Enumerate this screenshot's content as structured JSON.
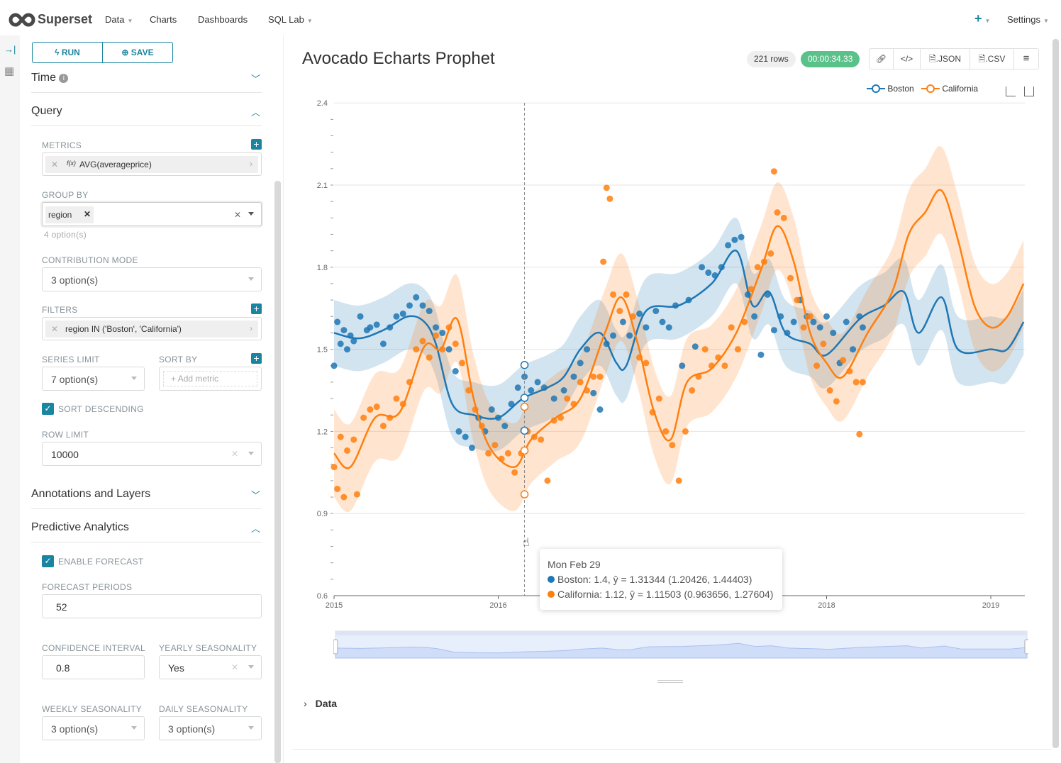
{
  "nav": {
    "brand": "Superset",
    "items": [
      {
        "label": "Data",
        "caret": true
      },
      {
        "label": "Charts"
      },
      {
        "label": "Dashboards"
      },
      {
        "label": "SQL Lab",
        "caret": true
      }
    ],
    "plus": "+",
    "settings": "Settings"
  },
  "toolbar": {
    "run": "RUN",
    "save": "SAVE"
  },
  "sections": {
    "time": "Time",
    "query": "Query",
    "annotations": "Annotations and Layers",
    "predictive": "Predictive Analytics"
  },
  "controls": {
    "metrics_label": "METRICS",
    "metric": "AVG(averageprice)",
    "fx": "f(x)",
    "groupby_label": "GROUP BY",
    "groupby_chip": "region",
    "groupby_hint": "4 option(s)",
    "contribution_label": "CONTRIBUTION MODE",
    "contribution_value": "3 option(s)",
    "filters_label": "FILTERS",
    "filter": "region IN ('Boston', 'California')",
    "series_limit_label": "SERIES LIMIT",
    "series_limit_value": "7 option(s)",
    "sort_by_label": "SORT BY",
    "sort_by_placeholder": "Add metric",
    "sort_desc_label": "SORT DESCENDING",
    "row_limit_label": "ROW LIMIT",
    "row_limit_value": "10000",
    "enable_forecast_label": "ENABLE FORECAST",
    "forecast_periods_label": "FORECAST PERIODS",
    "forecast_periods_value": "52",
    "confidence_label": "CONFIDENCE INTERVAL",
    "confidence_value": "0.8",
    "yearly_label": "YEARLY SEASONALITY",
    "yearly_value": "Yes",
    "weekly_label": "WEEKLY SEASONALITY",
    "weekly_value": "3 option(s)",
    "daily_label": "DAILY SEASONALITY",
    "daily_value": "3 option(s)"
  },
  "chart": {
    "title": "Avocado Echarts Prophet",
    "rows": "221 rows",
    "timer": "00:00:34.33",
    "json": ".JSON",
    "csv": ".CSV",
    "data_section": "Data"
  },
  "tooltip": {
    "date": "Mon Feb 29",
    "lines": [
      "Boston: 1.4, ŷ = 1.31344 (1.20426, 1.44403)",
      "California: 1.12, ŷ = 1.11503 (0.963656, 1.27604)"
    ]
  },
  "colors": {
    "accent": "#1a85a0",
    "boston": "#1f77b4",
    "california": "#ff7f0e",
    "timer": "#5ac189"
  },
  "chart_data": {
    "type": "line",
    "title": "Avocado Echarts Prophet",
    "ylim": [
      0.6,
      2.4
    ],
    "yticks": [
      "0.6",
      "0.9",
      "1.2",
      "1.5",
      "1.8",
      "2.1",
      "2.4"
    ],
    "xlim": [
      2015,
      2019.2
    ],
    "xticks": [
      {
        "v": 2015,
        "label": "2015"
      },
      {
        "v": 2016,
        "label": "2016"
      },
      {
        "v": 2018,
        "label": "2018"
      },
      {
        "v": 2019,
        "label": "2019"
      }
    ],
    "legend": [
      "Boston",
      "California"
    ],
    "legend_position": "top-right",
    "hover_x": 2016.16,
    "series": [
      {
        "name": "Boston",
        "color": "#1f77b4",
        "band": 0.12,
        "yhat": [
          [
            2015,
            1.56
          ],
          [
            2015.15,
            1.54
          ],
          [
            2015.3,
            1.57
          ],
          [
            2015.45,
            1.62
          ],
          [
            2015.55,
            1.6
          ],
          [
            2015.62,
            1.52
          ],
          [
            2015.72,
            1.3
          ],
          [
            2015.85,
            1.26
          ],
          [
            2016,
            1.25
          ],
          [
            2016.15,
            1.32
          ],
          [
            2016.3,
            1.36
          ],
          [
            2016.4,
            1.4
          ],
          [
            2016.5,
            1.5
          ],
          [
            2016.62,
            1.56
          ],
          [
            2016.72,
            1.45
          ],
          [
            2016.78,
            1.44
          ],
          [
            2016.9,
            1.64
          ],
          [
            2017.1,
            1.66
          ],
          [
            2017.3,
            1.74
          ],
          [
            2017.45,
            1.86
          ],
          [
            2017.55,
            1.66
          ],
          [
            2017.65,
            1.71
          ],
          [
            2017.75,
            1.56
          ],
          [
            2017.9,
            1.52
          ],
          [
            2018,
            1.48
          ],
          [
            2018.2,
            1.61
          ],
          [
            2018.35,
            1.66
          ],
          [
            2018.47,
            1.71
          ],
          [
            2018.56,
            1.56
          ],
          [
            2018.7,
            1.69
          ],
          [
            2018.8,
            1.5
          ],
          [
            2019,
            1.5
          ],
          [
            2019.1,
            1.5
          ],
          [
            2019.2,
            1.6
          ]
        ],
        "actual": [
          [
            2015,
            1.44
          ],
          [
            2015.02,
            1.6
          ],
          [
            2015.04,
            1.52
          ],
          [
            2015.06,
            1.57
          ],
          [
            2015.08,
            1.5
          ],
          [
            2015.1,
            1.55
          ],
          [
            2015.12,
            1.53
          ],
          [
            2015.16,
            1.62
          ],
          [
            2015.2,
            1.57
          ],
          [
            2015.22,
            1.58
          ],
          [
            2015.26,
            1.59
          ],
          [
            2015.3,
            1.52
          ],
          [
            2015.34,
            1.58
          ],
          [
            2015.38,
            1.62
          ],
          [
            2015.42,
            1.63
          ],
          [
            2015.46,
            1.66
          ],
          [
            2015.5,
            1.69
          ],
          [
            2015.54,
            1.66
          ],
          [
            2015.58,
            1.64
          ],
          [
            2015.62,
            1.58
          ],
          [
            2015.66,
            1.56
          ],
          [
            2015.7,
            1.5
          ],
          [
            2015.74,
            1.42
          ],
          [
            2015.76,
            1.2
          ],
          [
            2015.8,
            1.18
          ],
          [
            2015.84,
            1.14
          ],
          [
            2015.88,
            1.25
          ],
          [
            2015.92,
            1.2
          ],
          [
            2015.96,
            1.28
          ],
          [
            2016,
            1.25
          ],
          [
            2016.04,
            1.22
          ],
          [
            2016.08,
            1.3
          ],
          [
            2016.12,
            1.36
          ],
          [
            2016.16,
            1.4
          ],
          [
            2016.2,
            1.35
          ],
          [
            2016.24,
            1.38
          ],
          [
            2016.28,
            1.36
          ],
          [
            2016.34,
            1.32
          ],
          [
            2016.4,
            1.35
          ],
          [
            2016.46,
            1.4
          ],
          [
            2016.5,
            1.45
          ],
          [
            2016.54,
            1.5
          ],
          [
            2016.58,
            1.34
          ],
          [
            2016.62,
            1.28
          ],
          [
            2016.66,
            1.52
          ],
          [
            2016.7,
            1.55
          ],
          [
            2016.76,
            1.6
          ],
          [
            2016.8,
            1.55
          ],
          [
            2016.86,
            1.63
          ],
          [
            2016.9,
            1.58
          ],
          [
            2016.96,
            1.64
          ],
          [
            2017,
            1.6
          ],
          [
            2017.04,
            1.58
          ],
          [
            2017.08,
            1.66
          ],
          [
            2017.12,
            1.44
          ],
          [
            2017.16,
            1.68
          ],
          [
            2017.2,
            1.51
          ],
          [
            2017.24,
            1.8
          ],
          [
            2017.28,
            1.78
          ],
          [
            2017.32,
            1.77
          ],
          [
            2017.36,
            1.8
          ],
          [
            2017.4,
            1.88
          ],
          [
            2017.44,
            1.9
          ],
          [
            2017.48,
            1.91
          ],
          [
            2017.52,
            1.7
          ],
          [
            2017.56,
            1.62
          ],
          [
            2017.6,
            1.48
          ],
          [
            2017.64,
            1.7
          ],
          [
            2017.68,
            1.57
          ],
          [
            2017.72,
            1.62
          ],
          [
            2017.76,
            1.56
          ],
          [
            2017.8,
            1.6
          ],
          [
            2017.84,
            1.68
          ],
          [
            2017.88,
            1.62
          ],
          [
            2017.92,
            1.6
          ],
          [
            2017.96,
            1.58
          ],
          [
            2018,
            1.62
          ],
          [
            2018.04,
            1.56
          ],
          [
            2018.08,
            1.45
          ],
          [
            2018.12,
            1.6
          ],
          [
            2018.16,
            1.5
          ],
          [
            2018.2,
            1.62
          ],
          [
            2018.22,
            1.58
          ]
        ]
      },
      {
        "name": "California",
        "color": "#ff7f0e",
        "band": 0.16,
        "yhat": [
          [
            2015,
            1.12
          ],
          [
            2015.1,
            1.07
          ],
          [
            2015.25,
            1.25
          ],
          [
            2015.4,
            1.27
          ],
          [
            2015.55,
            1.51
          ],
          [
            2015.65,
            1.5
          ],
          [
            2015.75,
            1.61
          ],
          [
            2015.85,
            1.32
          ],
          [
            2015.95,
            1.14
          ],
          [
            2016.1,
            1.07
          ],
          [
            2016.2,
            1.17
          ],
          [
            2016.35,
            1.25
          ],
          [
            2016.5,
            1.32
          ],
          [
            2016.65,
            1.56
          ],
          [
            2016.75,
            1.69
          ],
          [
            2016.85,
            1.52
          ],
          [
            2016.95,
            1.27
          ],
          [
            2017.05,
            1.17
          ],
          [
            2017.15,
            1.38
          ],
          [
            2017.3,
            1.43
          ],
          [
            2017.45,
            1.56
          ],
          [
            2017.6,
            1.79
          ],
          [
            2017.7,
            1.95
          ],
          [
            2017.8,
            1.82
          ],
          [
            2017.9,
            1.56
          ],
          [
            2018,
            1.45
          ],
          [
            2018.1,
            1.4
          ],
          [
            2018.25,
            1.56
          ],
          [
            2018.4,
            1.71
          ],
          [
            2018.5,
            1.92
          ],
          [
            2018.6,
            2.0
          ],
          [
            2018.7,
            2.08
          ],
          [
            2018.8,
            1.9
          ],
          [
            2018.9,
            1.66
          ],
          [
            2019,
            1.58
          ],
          [
            2019.1,
            1.62
          ],
          [
            2019.2,
            1.74
          ]
        ],
        "actual": [
          [
            2015,
            1.07
          ],
          [
            2015.02,
            0.99
          ],
          [
            2015.04,
            1.18
          ],
          [
            2015.06,
            0.96
          ],
          [
            2015.08,
            1.13
          ],
          [
            2015.12,
            1.17
          ],
          [
            2015.14,
            0.97
          ],
          [
            2015.18,
            1.25
          ],
          [
            2015.22,
            1.28
          ],
          [
            2015.26,
            1.29
          ],
          [
            2015.3,
            1.22
          ],
          [
            2015.34,
            1.25
          ],
          [
            2015.38,
            1.32
          ],
          [
            2015.42,
            1.3
          ],
          [
            2015.46,
            1.38
          ],
          [
            2015.5,
            1.5
          ],
          [
            2015.54,
            1.53
          ],
          [
            2015.58,
            1.47
          ],
          [
            2015.62,
            1.55
          ],
          [
            2015.66,
            1.5
          ],
          [
            2015.7,
            1.58
          ],
          [
            2015.74,
            1.52
          ],
          [
            2015.78,
            1.45
          ],
          [
            2015.82,
            1.35
          ],
          [
            2015.86,
            1.28
          ],
          [
            2015.9,
            1.22
          ],
          [
            2015.94,
            1.12
          ],
          [
            2015.98,
            1.15
          ],
          [
            2016.02,
            1.1
          ],
          [
            2016.06,
            1.12
          ],
          [
            2016.1,
            1.05
          ],
          [
            2016.14,
            1.12
          ],
          [
            2016.18,
            1.2
          ],
          [
            2016.22,
            1.18
          ],
          [
            2016.26,
            1.17
          ],
          [
            2016.3,
            1.02
          ],
          [
            2016.34,
            1.24
          ],
          [
            2016.38,
            1.25
          ],
          [
            2016.42,
            1.32
          ],
          [
            2016.46,
            1.3
          ],
          [
            2016.5,
            1.38
          ],
          [
            2016.54,
            1.35
          ],
          [
            2016.58,
            1.4
          ],
          [
            2016.62,
            1.4
          ],
          [
            2016.64,
            1.82
          ],
          [
            2016.66,
            2.09
          ],
          [
            2016.68,
            2.05
          ],
          [
            2016.7,
            1.7
          ],
          [
            2016.74,
            1.64
          ],
          [
            2016.78,
            1.7
          ],
          [
            2016.82,
            1.62
          ],
          [
            2016.86,
            1.47
          ],
          [
            2016.9,
            1.45
          ],
          [
            2016.94,
            1.27
          ],
          [
            2016.98,
            1.32
          ],
          [
            2017.02,
            1.2
          ],
          [
            2017.06,
            1.15
          ],
          [
            2017.1,
            1.02
          ],
          [
            2017.14,
            1.2
          ],
          [
            2017.18,
            1.35
          ],
          [
            2017.22,
            1.4
          ],
          [
            2017.26,
            1.5
          ],
          [
            2017.3,
            1.44
          ],
          [
            2017.34,
            1.47
          ],
          [
            2017.38,
            1.44
          ],
          [
            2017.42,
            1.58
          ],
          [
            2017.46,
            1.5
          ],
          [
            2017.5,
            1.6
          ],
          [
            2017.54,
            1.72
          ],
          [
            2017.58,
            1.8
          ],
          [
            2017.62,
            1.82
          ],
          [
            2017.66,
            1.85
          ],
          [
            2017.68,
            2.15
          ],
          [
            2017.7,
            2.0
          ],
          [
            2017.74,
            1.98
          ],
          [
            2017.78,
            1.76
          ],
          [
            2017.82,
            1.68
          ],
          [
            2017.86,
            1.58
          ],
          [
            2017.9,
            1.62
          ],
          [
            2017.94,
            1.44
          ],
          [
            2017.98,
            1.52
          ],
          [
            2018.02,
            1.35
          ],
          [
            2018.06,
            1.31
          ],
          [
            2018.1,
            1.46
          ],
          [
            2018.14,
            1.42
          ],
          [
            2018.18,
            1.38
          ],
          [
            2018.2,
            1.19
          ],
          [
            2018.22,
            1.38
          ]
        ]
      }
    ]
  }
}
